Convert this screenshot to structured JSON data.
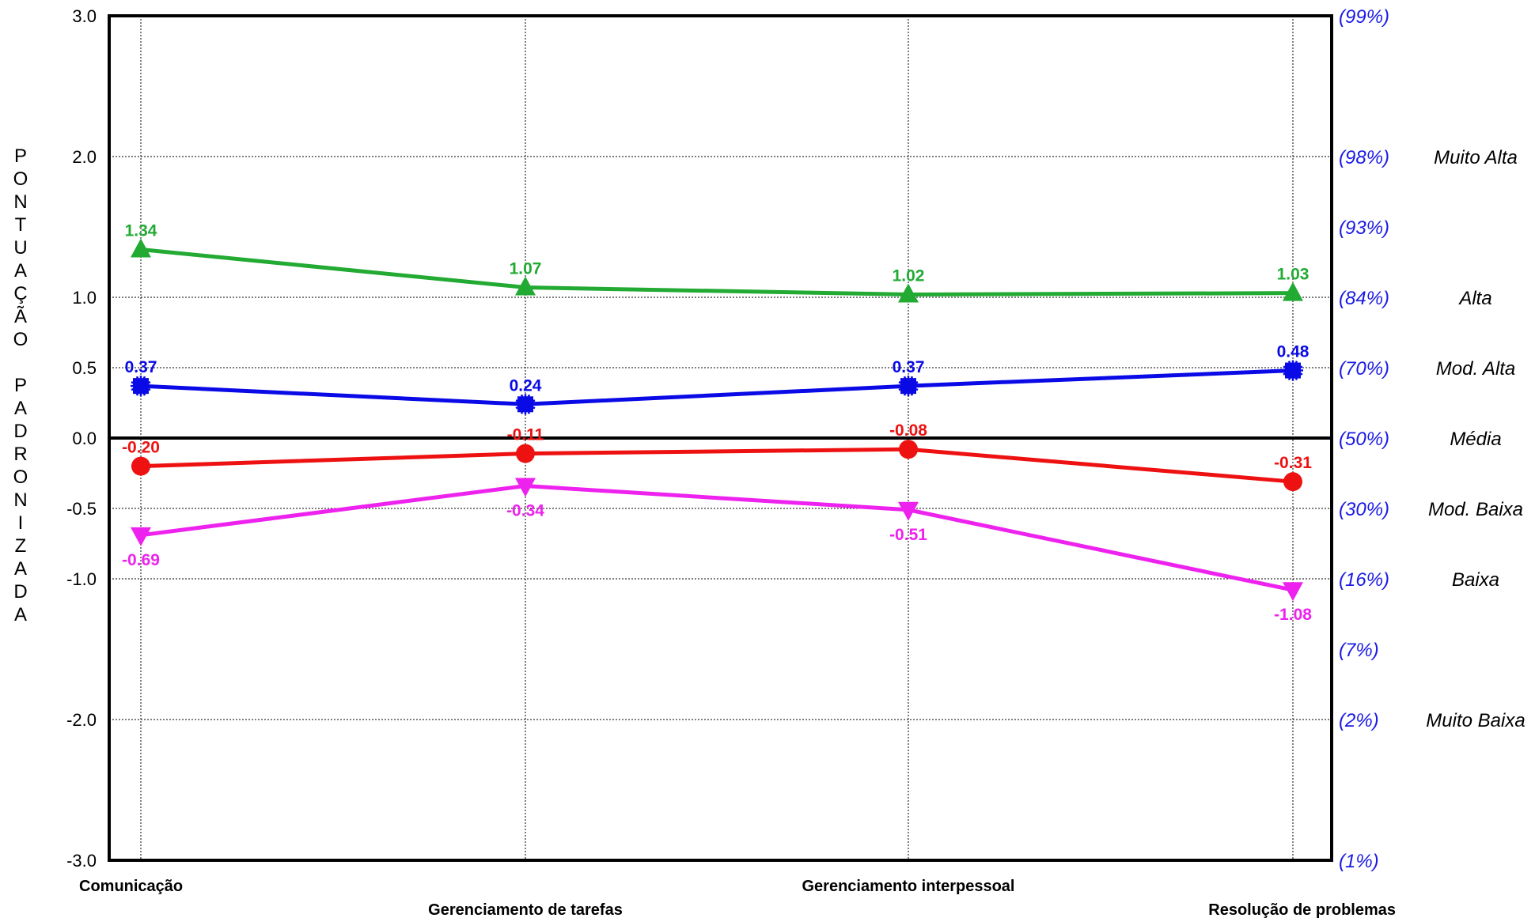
{
  "chart_data": {
    "type": "line",
    "ylabel": "PONTUAÇÃO PADRONIZADA",
    "ylim": [
      -3.0,
      3.0
    ],
    "y_ticks": [
      {
        "value": 3.0,
        "label": "3.0"
      },
      {
        "value": 2.0,
        "label": "2.0"
      },
      {
        "value": 1.0,
        "label": "1.0"
      },
      {
        "value": 0.5,
        "label": "0.5"
      },
      {
        "value": 0.0,
        "label": "0.0"
      },
      {
        "value": -0.5,
        "label": "-0.5"
      },
      {
        "value": -1.0,
        "label": "-1.0"
      },
      {
        "value": -2.0,
        "label": "-2.0"
      },
      {
        "value": -3.0,
        "label": "-3.0"
      }
    ],
    "percentile_labels": [
      {
        "value": 3.0,
        "label": "(99%)"
      },
      {
        "value": 2.0,
        "label": "(98%)"
      },
      {
        "value": 1.5,
        "label": "(93%)"
      },
      {
        "value": 1.0,
        "label": "(84%)"
      },
      {
        "value": 0.5,
        "label": "(70%)"
      },
      {
        "value": 0.0,
        "label": "(50%)"
      },
      {
        "value": -0.5,
        "label": "(30%)"
      },
      {
        "value": -1.0,
        "label": "(16%)"
      },
      {
        "value": -1.5,
        "label": "(7%)"
      },
      {
        "value": -2.0,
        "label": "(2%)"
      },
      {
        "value": -3.0,
        "label": "(1%)"
      }
    ],
    "band_labels": [
      {
        "value": 2.0,
        "label": "Muito Alta"
      },
      {
        "value": 1.0,
        "label": "Alta"
      },
      {
        "value": 0.5,
        "label": "Mod. Alta"
      },
      {
        "value": 0.0,
        "label": "Média"
      },
      {
        "value": -0.5,
        "label": "Mod. Baixa"
      },
      {
        "value": -1.0,
        "label": "Baixa"
      },
      {
        "value": -2.0,
        "label": "Muito Baixa"
      }
    ],
    "categories": [
      "Comunicação",
      "Gerenciamento de tarefas",
      "Gerenciamento interpessoal",
      "Resolução de problemas"
    ],
    "grid": true,
    "series": [
      {
        "values": [
          1.34,
          1.07,
          1.02,
          1.03
        ],
        "labels": [
          "1.34",
          "1.07",
          "1.02",
          "1.03"
        ],
        "color": "#22aa33",
        "marker": "triangle-up",
        "label_pos": "above"
      },
      {
        "values": [
          0.37,
          0.24,
          0.37,
          0.48
        ],
        "labels": [
          "0.37",
          "0.24",
          "0.37",
          "0.48"
        ],
        "color": "#0a0ae6",
        "marker": "star",
        "label_pos": "above"
      },
      {
        "values": [
          -0.2,
          -0.11,
          -0.08,
          -0.31
        ],
        "labels": [
          "-0.20",
          "-0.11",
          "-0.08",
          "-0.31"
        ],
        "color": "#ee1111",
        "marker": "circle",
        "label_pos": "above"
      },
      {
        "values": [
          -0.69,
          -0.34,
          -0.51,
          -1.08
        ],
        "labels": [
          "-0.69",
          "-0.34",
          "-0.51",
          "-1.08"
        ],
        "color": "#ee22ee",
        "marker": "triangle-down",
        "label_pos": "below"
      }
    ]
  }
}
